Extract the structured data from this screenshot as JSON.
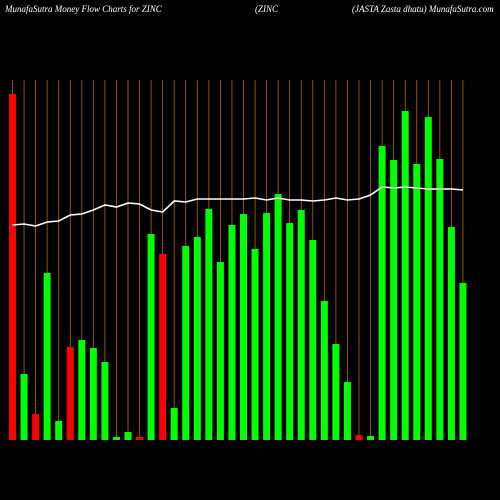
{
  "chart_data": {
    "type": "bar",
    "title": "MunafaSutra  Money Flow  Charts for ZINC",
    "subtitle": "(ZINC",
    "annotation": "(JASTA Zasta  dhatu) MunafaSutra.com",
    "categories": [
      null,
      null,
      null,
      null,
      null,
      null,
      null,
      null,
      null,
      null,
      null,
      null,
      null,
      null,
      null,
      null,
      null,
      null,
      null,
      null,
      null,
      null,
      null,
      null,
      null,
      null,
      null,
      null,
      null,
      null,
      null,
      null,
      null,
      null,
      null,
      null,
      null,
      null,
      null,
      null
    ],
    "ylim": [
      0,
      360
    ],
    "series": [
      {
        "type": "bar",
        "colors": [
          "#ff0000",
          "#00ff00",
          "#ff0000",
          "#00ff00",
          "#00ff00",
          "#ff0000",
          "#00ff00",
          "#00ff00",
          "#00ff00",
          "#00ff00",
          "#00ff00",
          "#ff0000",
          "#00ff00",
          "#ff0000",
          "#00ff00",
          "#00ff00",
          "#00ff00",
          "#00ff00",
          "#00ff00",
          "#00ff00",
          "#00ff00",
          "#00ff00",
          "#00ff00",
          "#00ff00",
          "#00ff00",
          "#00ff00",
          "#00ff00",
          "#00ff00",
          "#00ff00",
          "#00ff00",
          "#ff0000",
          "#00ff00",
          "#00ff00",
          "#00ff00",
          "#00ff00",
          "#00ff00",
          "#00ff00",
          "#00ff00",
          "#00ff00",
          "#00ff00"
        ],
        "values": [
          346,
          66,
          26,
          167,
          19,
          93,
          100,
          92,
          78,
          3,
          8,
          3,
          206,
          186,
          32,
          194,
          203,
          231,
          178,
          215,
          226,
          191,
          227,
          246,
          217,
          230,
          200,
          139,
          96,
          58,
          5,
          4,
          294,
          280,
          329,
          276,
          323,
          281,
          213,
          157
        ]
      },
      {
        "type": "line",
        "color": "#ffffff",
        "values": [
          215,
          216,
          214,
          218,
          219,
          225,
          226,
          230,
          235,
          233,
          237,
          236,
          230,
          228,
          239,
          238,
          241,
          241,
          241,
          241,
          241,
          242,
          240,
          242,
          240,
          240,
          239,
          240,
          242,
          240,
          241,
          245,
          253,
          252,
          253,
          252,
          251,
          251,
          251,
          250
        ]
      }
    ]
  }
}
